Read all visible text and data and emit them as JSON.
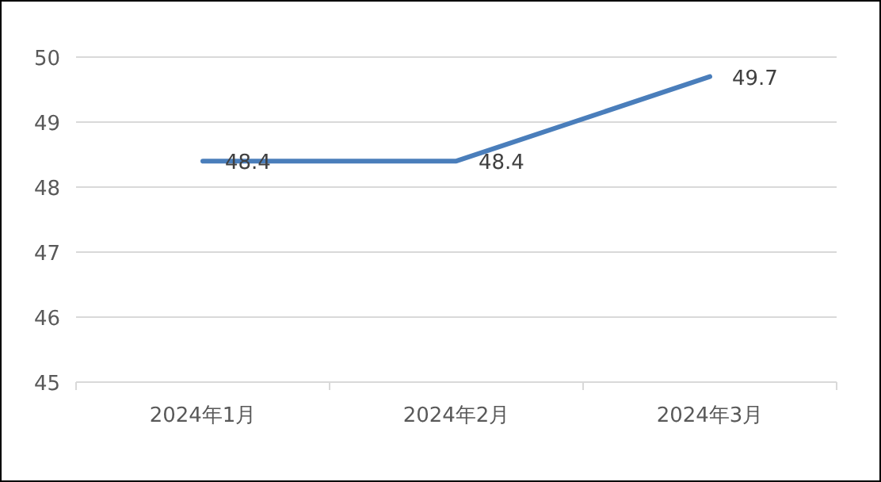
{
  "chart_data": {
    "type": "line",
    "categories": [
      "2024年1月",
      "2024年2月",
      "2024年3月"
    ],
    "series": [
      {
        "color": "#4a7ebb",
        "values": [
          48.4,
          48.4,
          49.7
        ]
      }
    ],
    "ylim": [
      45,
      50
    ],
    "yticks": [
      45,
      46,
      47,
      48,
      49,
      50
    ],
    "grid": "y",
    "data_labels": true
  }
}
